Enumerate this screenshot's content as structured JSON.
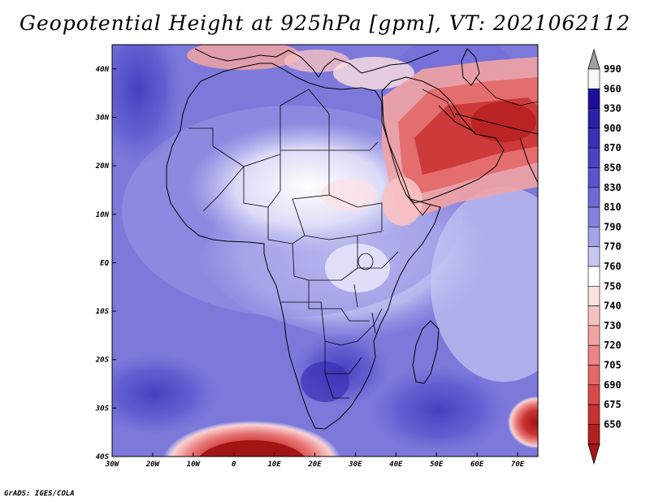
{
  "title": "Geopotential Height at 925hPa [gpm], VT: 2021062112",
  "credit": "GrADS: IGES/COLA",
  "map": {
    "lon_range": [
      -30,
      75
    ],
    "lat_range": [
      -40,
      45
    ],
    "lon_ticks": [
      {
        "lon": -30,
        "label": "30W"
      },
      {
        "lon": -20,
        "label": "20W"
      },
      {
        "lon": -10,
        "label": "10W"
      },
      {
        "lon": 0,
        "label": "0"
      },
      {
        "lon": 10,
        "label": "10E"
      },
      {
        "lon": 20,
        "label": "20E"
      },
      {
        "lon": 30,
        "label": "30E"
      },
      {
        "lon": 40,
        "label": "40E"
      },
      {
        "lon": 50,
        "label": "50E"
      },
      {
        "lon": 60,
        "label": "60E"
      },
      {
        "lon": 70,
        "label": "70E"
      }
    ],
    "lat_ticks": [
      {
        "lat": 40,
        "label": "40N"
      },
      {
        "lat": 30,
        "label": "30N"
      },
      {
        "lat": 20,
        "label": "20N"
      },
      {
        "lat": 10,
        "label": "10N"
      },
      {
        "lat": 0,
        "label": "EQ"
      },
      {
        "lat": -10,
        "label": "10S"
      },
      {
        "lat": -20,
        "label": "20S"
      },
      {
        "lat": -30,
        "label": "30S"
      },
      {
        "lat": -40,
        "label": "40S"
      }
    ]
  },
  "colorbar": {
    "levels": [
      {
        "label": "990",
        "color": "#f7f7f7"
      },
      {
        "label": "960",
        "color": "#1d0f9c"
      },
      {
        "label": "930",
        "color": "#2c20a8"
      },
      {
        "label": "900",
        "color": "#3a31b5"
      },
      {
        "label": "870",
        "color": "#4a43c1"
      },
      {
        "label": "850",
        "color": "#5a55cc"
      },
      {
        "label": "830",
        "color": "#6d69d5"
      },
      {
        "label": "810",
        "color": "#8482de"
      },
      {
        "label": "790",
        "color": "#a3a2e9"
      },
      {
        "label": "770",
        "color": "#c6c6f3"
      },
      {
        "label": "760",
        "color": "#ffffff"
      },
      {
        "label": "750",
        "color": "#fde1e1"
      },
      {
        "label": "740",
        "color": "#f8c2c2"
      },
      {
        "label": "730",
        "color": "#f2a3a3"
      },
      {
        "label": "720",
        "color": "#ec8585"
      },
      {
        "label": "705",
        "color": "#e36767"
      },
      {
        "label": "690",
        "color": "#d84a4a"
      },
      {
        "label": "675",
        "color": "#c93131"
      },
      {
        "label": "650",
        "color": "#b51e1e"
      }
    ],
    "top_triangle_color": "#a0a0a0",
    "bottom_triangle_color": "#a51616"
  }
}
